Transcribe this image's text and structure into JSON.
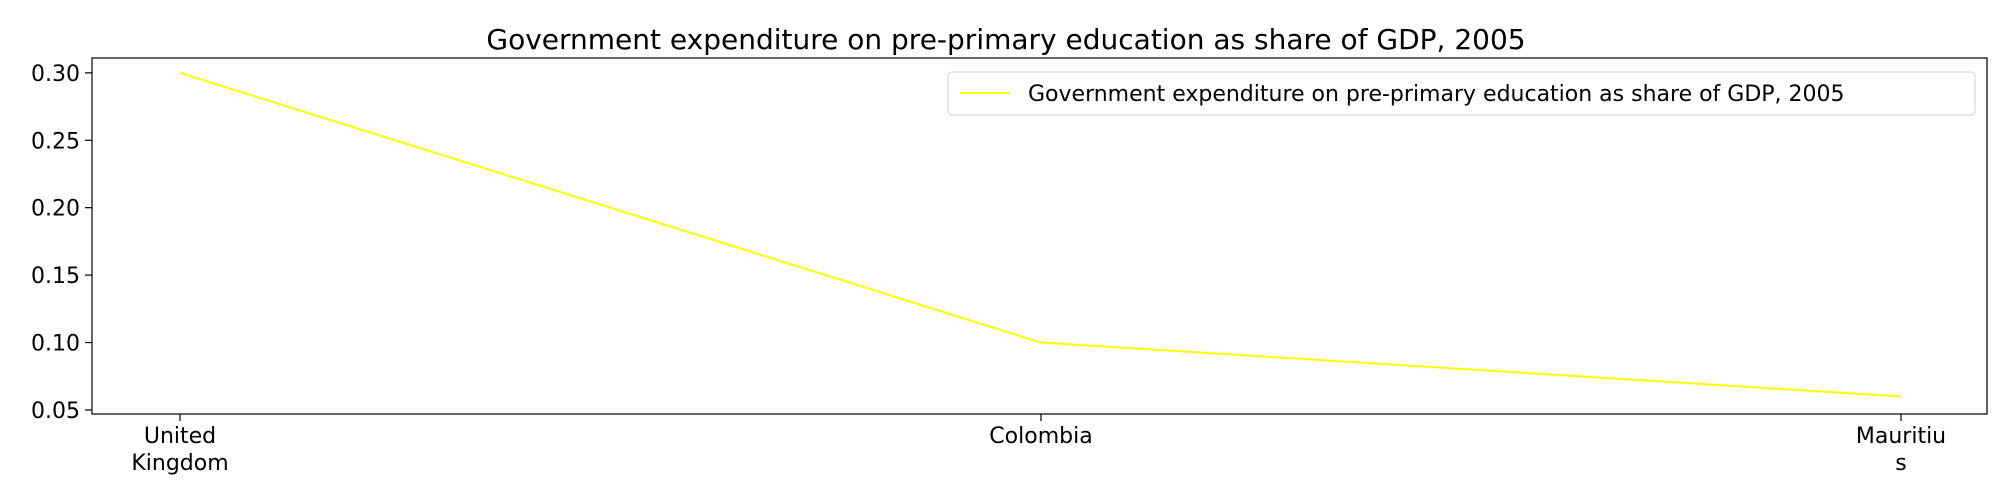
{
  "chart_data": {
    "type": "line",
    "title": "Government expenditure on pre-primary education as share of GDP, 2005",
    "xlabel": "",
    "ylabel": "",
    "categories": [
      [
        "United",
        "Kingdom"
      ],
      [
        "Colombia"
      ],
      [
        "Mauritiu",
        "s"
      ]
    ],
    "series": [
      {
        "name": "Government expenditure on pre-primary education as share of GDP, 2005",
        "values": [
          0.3,
          0.1,
          0.06
        ],
        "color": "#ffff00"
      }
    ],
    "ylim": [
      0.047,
      0.311
    ],
    "yticks": [
      "0.05",
      "0.10",
      "0.15",
      "0.20",
      "0.25",
      "0.30"
    ],
    "grid": false,
    "legend_position": "top-right"
  }
}
